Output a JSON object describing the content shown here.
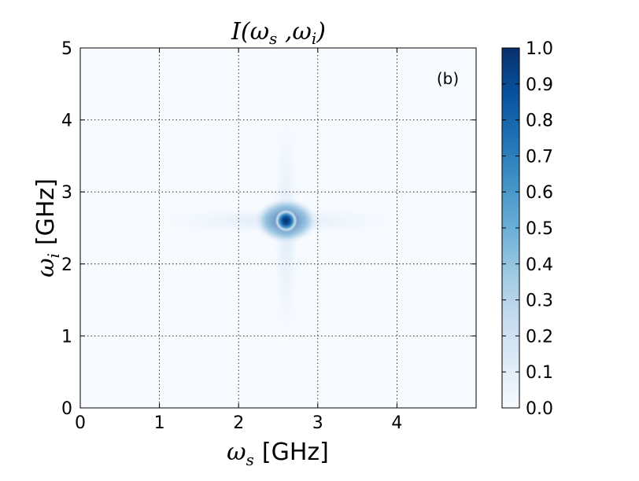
{
  "chart_data": {
    "type": "heatmap",
    "title": "I(ωs,ωi)",
    "title_parts": {
      "func": "I(",
      "var1": "ω",
      "sub1": "s",
      "sep": " ,",
      "var2": "ω",
      "sub2": "i",
      "close": ")"
    },
    "panel_label": "(b)",
    "xlabel": {
      "symbol": "ω",
      "sub": "s",
      "unit": "[GHz]"
    },
    "ylabel": {
      "symbol": "ω",
      "sub": "i",
      "unit": "[GHz]"
    },
    "xlim": [
      0,
      5
    ],
    "ylim": [
      0,
      5
    ],
    "x_ticks": [
      0,
      1,
      2,
      3,
      4
    ],
    "x_tick_labels": [
      "0",
      "1",
      "2",
      "3",
      "4"
    ],
    "y_ticks": [
      0,
      1,
      2,
      3,
      4,
      5
    ],
    "y_tick_labels": [
      "0",
      "1",
      "2",
      "3",
      "4",
      "5"
    ],
    "grid": true,
    "colormap": "Blues",
    "colormap_stops": [
      "#f7fbff",
      "#deebf7",
      "#c6dbef",
      "#9ecae1",
      "#6baed6",
      "#4292c6",
      "#2171b5",
      "#08519c",
      "#08306b"
    ],
    "colorbar": {
      "range": [
        0,
        1
      ],
      "ticks": [
        0,
        0.1,
        0.2,
        0.3,
        0.4,
        0.5,
        0.6,
        0.7,
        0.8,
        0.9,
        1.0
      ],
      "tick_labels": [
        "0.0",
        "0.1",
        "0.2",
        "0.3",
        "0.4",
        "0.5",
        "0.6",
        "0.7",
        "0.8",
        "0.9",
        "1.0"
      ]
    },
    "peak": {
      "x": 2.6,
      "y": 2.6,
      "value": 1.0
    }
  }
}
